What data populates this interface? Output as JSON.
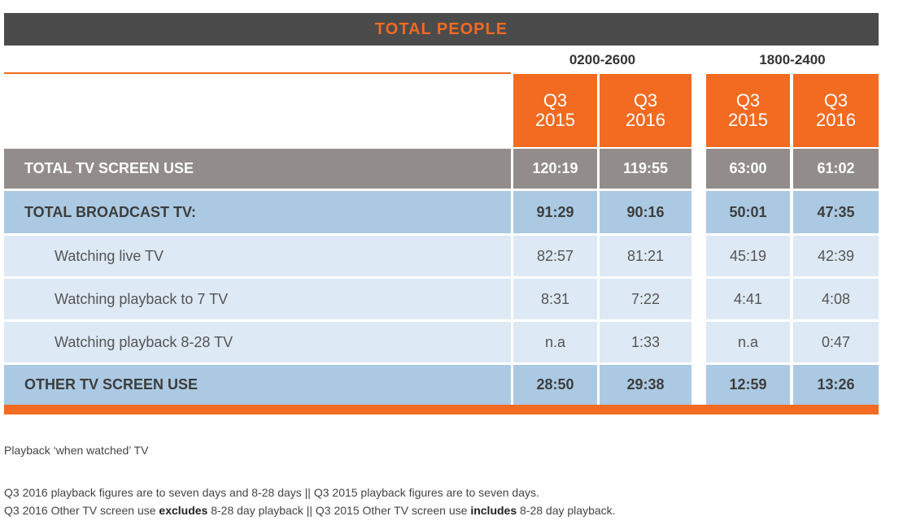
{
  "table": {
    "title": "TOTAL PEOPLE",
    "groups": [
      "0200-2600",
      "1800-2400"
    ],
    "columns": [
      {
        "quarter": "Q3",
        "year": "2015"
      },
      {
        "quarter": "Q3",
        "year": "2016"
      },
      {
        "quarter": "Q3",
        "year": "2015"
      },
      {
        "quarter": "Q3",
        "year": "2016"
      }
    ],
    "rows": [
      {
        "label": "TOTAL TV SCREEN USE",
        "cells": [
          "120:19",
          "119:55",
          "63:00",
          "61:02"
        ],
        "bold": true,
        "color": "#928d8b",
        "text_color": "#ffffff"
      },
      {
        "label": "TOTAL BROADCAST TV:",
        "cells": [
          "91:29",
          "90:16",
          "50:01",
          "47:35"
        ],
        "bold": true,
        "color": "#abc9e2",
        "text_color": "#3d3d3d"
      },
      {
        "label": "Watching live TV",
        "cells": [
          "82:57",
          "81:21",
          "45:19",
          "42:39"
        ],
        "bold": false,
        "color": "#dde9f4",
        "text_color": "#555555"
      },
      {
        "label": "Watching playback to 7 TV",
        "cells": [
          "8:31",
          "7:22",
          "4:41",
          "4:08"
        ],
        "bold": false,
        "color": "#dde9f4",
        "text_color": "#555555"
      },
      {
        "label": "Watching playback 8-28 TV",
        "cells": [
          "n.a",
          "1:33",
          "n.a",
          "0:47"
        ],
        "bold": false,
        "color": "#dde9f4",
        "text_color": "#555555"
      },
      {
        "label": "OTHER TV SCREEN USE",
        "cells": [
          "28:50",
          "29:38",
          "12:59",
          "13:26"
        ],
        "bold": true,
        "color": "#abc9e2",
        "text_color": "#3d3d3d"
      }
    ]
  },
  "notes": [
    [
      {
        "text": "Playback ‘when watched’ TV",
        "bold": false
      }
    ],
    [
      {
        "text": "Q3 2016 playback figures are to seven days and 8-28 days || Q3 2015 playback figures are to seven days.",
        "bold": false
      }
    ],
    [
      {
        "text": "Q3 2016 Other TV screen use ",
        "bold": false
      },
      {
        "text": "excludes",
        "bold": true
      },
      {
        "text": " 8-28 day playback || Q3 2015 Other TV screen use ",
        "bold": false
      },
      {
        "text": "includes",
        "bold": true
      },
      {
        "text": " 8-28 day playback.",
        "bold": false
      }
    ]
  ]
}
